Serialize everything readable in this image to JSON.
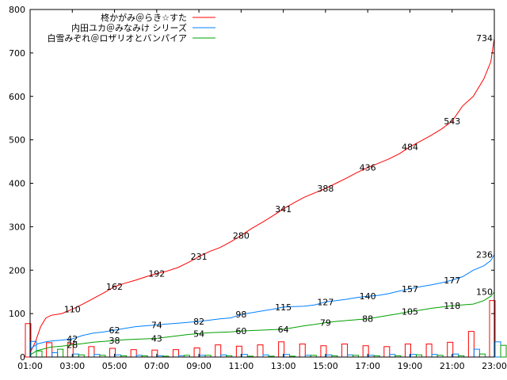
{
  "chart_data": {
    "type": "line",
    "x_start": "01:00",
    "x_end": "23:00",
    "x_ticks": [
      "01:00",
      "03:00",
      "05:00",
      "07:00",
      "09:00",
      "11:00",
      "13:00",
      "15:00",
      "17:00",
      "19:00",
      "21:00",
      "23:00"
    ],
    "ylim": [
      0,
      800
    ],
    "y_ticks": [
      "0",
      "100",
      "200",
      "300",
      "400",
      "500",
      "600",
      "700",
      "800"
    ],
    "grid": false,
    "legend_position": "top-left",
    "series": [
      {
        "name": "柊かがみ＠らき☆すた",
        "color": "#ff0000",
        "cumulative": [
          [
            "01:00",
            10
          ],
          [
            "01:15",
            35
          ],
          [
            "01:30",
            70
          ],
          [
            "01:45",
            90
          ],
          [
            "02:00",
            96
          ],
          [
            "02:30",
            100
          ],
          [
            "03:00",
            110
          ],
          [
            "03:30",
            122
          ],
          [
            "04:00",
            135
          ],
          [
            "04:30",
            148
          ],
          [
            "05:00",
            162
          ],
          [
            "05:30",
            170
          ],
          [
            "06:00",
            177
          ],
          [
            "06:30",
            185
          ],
          [
            "07:00",
            192
          ],
          [
            "07:30",
            198
          ],
          [
            "08:00",
            206
          ],
          [
            "08:30",
            218
          ],
          [
            "09:00",
            231
          ],
          [
            "09:30",
            243
          ],
          [
            "10:00",
            252
          ],
          [
            "10:30",
            265
          ],
          [
            "11:00",
            280
          ],
          [
            "11:30",
            296
          ],
          [
            "12:00",
            310
          ],
          [
            "12:30",
            325
          ],
          [
            "13:00",
            341
          ],
          [
            "13:30",
            355
          ],
          [
            "14:00",
            368
          ],
          [
            "14:30",
            378
          ],
          [
            "15:00",
            388
          ],
          [
            "15:30",
            400
          ],
          [
            "16:00",
            412
          ],
          [
            "16:30",
            425
          ],
          [
            "17:00",
            436
          ],
          [
            "17:30",
            446
          ],
          [
            "18:00",
            456
          ],
          [
            "18:30",
            468
          ],
          [
            "19:00",
            484
          ],
          [
            "19:30",
            497
          ],
          [
            "20:00",
            510
          ],
          [
            "20:30",
            525
          ],
          [
            "21:00",
            543
          ],
          [
            "21:30",
            578
          ],
          [
            "22:00",
            600
          ],
          [
            "22:30",
            640
          ],
          [
            "22:50",
            680
          ],
          [
            "23:00",
            734
          ]
        ],
        "point_labels": [
          [
            "03:00",
            110
          ],
          [
            "05:00",
            162
          ],
          [
            "07:00",
            192
          ],
          [
            "09:00",
            231
          ],
          [
            "11:00",
            280
          ],
          [
            "13:00",
            341
          ],
          [
            "15:00",
            388
          ],
          [
            "17:00",
            436
          ],
          [
            "19:00",
            484
          ],
          [
            "21:00",
            543
          ],
          [
            "23:00",
            734
          ]
        ],
        "hourly": [
          [
            "01:00",
            77
          ],
          [
            "02:00",
            33
          ],
          [
            "03:00",
            31
          ],
          [
            "04:00",
            24
          ],
          [
            "05:00",
            20
          ],
          [
            "06:00",
            17
          ],
          [
            "07:00",
            16
          ],
          [
            "08:00",
            17
          ],
          [
            "09:00",
            21
          ],
          [
            "10:00",
            28
          ],
          [
            "11:00",
            25
          ],
          [
            "12:00",
            28
          ],
          [
            "13:00",
            35
          ],
          [
            "14:00",
            30
          ],
          [
            "15:00",
            26
          ],
          [
            "16:00",
            30
          ],
          [
            "17:00",
            26
          ],
          [
            "18:00",
            24
          ],
          [
            "19:00",
            30
          ],
          [
            "20:00",
            30
          ],
          [
            "21:00",
            34
          ],
          [
            "22:00",
            59
          ],
          [
            "23:00",
            130
          ]
        ]
      },
      {
        "name": "内田ユカ＠みなみけ シリーズ",
        "color": "#0080ff",
        "cumulative": [
          [
            "01:00",
            18
          ],
          [
            "01:20",
            30
          ],
          [
            "01:45",
            35
          ],
          [
            "02:00",
            37
          ],
          [
            "02:30",
            39
          ],
          [
            "03:00",
            42
          ],
          [
            "03:30",
            50
          ],
          [
            "04:00",
            55
          ],
          [
            "04:30",
            58
          ],
          [
            "05:00",
            62
          ],
          [
            "05:30",
            66
          ],
          [
            "06:00",
            70
          ],
          [
            "06:30",
            72
          ],
          [
            "07:00",
            74
          ],
          [
            "07:30",
            76
          ],
          [
            "08:00",
            78
          ],
          [
            "08:30",
            80
          ],
          [
            "09:00",
            82
          ],
          [
            "09:30",
            85
          ],
          [
            "10:00",
            88
          ],
          [
            "10:30",
            90
          ],
          [
            "11:00",
            98
          ],
          [
            "11:30",
            102
          ],
          [
            "12:00",
            106
          ],
          [
            "12:30",
            110
          ],
          [
            "13:00",
            115
          ],
          [
            "13:30",
            116
          ],
          [
            "14:00",
            117
          ],
          [
            "14:30",
            120
          ],
          [
            "15:00",
            127
          ],
          [
            "15:30",
            130
          ],
          [
            "16:00",
            133
          ],
          [
            "16:30",
            137
          ],
          [
            "17:00",
            140
          ],
          [
            "17:30",
            142
          ],
          [
            "18:00",
            146
          ],
          [
            "18:30",
            152
          ],
          [
            "19:00",
            157
          ],
          [
            "19:30",
            162
          ],
          [
            "20:00",
            166
          ],
          [
            "20:30",
            171
          ],
          [
            "21:00",
            177
          ],
          [
            "21:30",
            185
          ],
          [
            "22:00",
            200
          ],
          [
            "22:30",
            210
          ],
          [
            "22:50",
            222
          ],
          [
            "23:00",
            236
          ]
        ],
        "point_labels": [
          [
            "03:00",
            42
          ],
          [
            "05:00",
            62
          ],
          [
            "07:00",
            74
          ],
          [
            "09:00",
            82
          ],
          [
            "11:00",
            98
          ],
          [
            "13:00",
            115
          ],
          [
            "15:00",
            127
          ],
          [
            "17:00",
            140
          ],
          [
            "19:00",
            157
          ],
          [
            "21:00",
            177
          ],
          [
            "23:00",
            236
          ]
        ],
        "hourly": [
          [
            "01:00",
            36
          ],
          [
            "02:00",
            10
          ],
          [
            "03:00",
            7
          ],
          [
            "04:00",
            6
          ],
          [
            "05:00",
            5
          ],
          [
            "06:00",
            4
          ],
          [
            "07:00",
            3
          ],
          [
            "08:00",
            3
          ],
          [
            "09:00",
            4
          ],
          [
            "10:00",
            5
          ],
          [
            "11:00",
            6
          ],
          [
            "12:00",
            5
          ],
          [
            "13:00",
            6
          ],
          [
            "14:00",
            4
          ],
          [
            "15:00",
            5
          ],
          [
            "16:00",
            5
          ],
          [
            "17:00",
            4
          ],
          [
            "18:00",
            6
          ],
          [
            "19:00",
            6
          ],
          [
            "20:00",
            6
          ],
          [
            "21:00",
            7
          ],
          [
            "22:00",
            18
          ],
          [
            "23:00",
            35
          ]
        ]
      },
      {
        "name": "白雪みぞれ＠ロザリオとバンパイア",
        "color": "#00a000",
        "cumulative": [
          [
            "01:00",
            5
          ],
          [
            "01:20",
            15
          ],
          [
            "01:45",
            20
          ],
          [
            "02:00",
            23
          ],
          [
            "02:30",
            25
          ],
          [
            "03:00",
            28
          ],
          [
            "03:30",
            31
          ],
          [
            "04:00",
            34
          ],
          [
            "04:30",
            36
          ],
          [
            "05:00",
            38
          ],
          [
            "05:30",
            40
          ],
          [
            "06:00",
            41
          ],
          [
            "06:30",
            42
          ],
          [
            "07:00",
            43
          ],
          [
            "07:30",
            46
          ],
          [
            "08:00",
            49
          ],
          [
            "08:30",
            52
          ],
          [
            "09:00",
            54
          ],
          [
            "09:30",
            56
          ],
          [
            "10:00",
            57
          ],
          [
            "10:30",
            58
          ],
          [
            "11:00",
            60
          ],
          [
            "11:30",
            61
          ],
          [
            "12:00",
            62
          ],
          [
            "12:30",
            63
          ],
          [
            "13:00",
            64
          ],
          [
            "13:30",
            68
          ],
          [
            "14:00",
            72
          ],
          [
            "14:30",
            75
          ],
          [
            "15:00",
            79
          ],
          [
            "15:30",
            82
          ],
          [
            "16:00",
            84
          ],
          [
            "16:30",
            86
          ],
          [
            "17:00",
            88
          ],
          [
            "17:30",
            92
          ],
          [
            "18:00",
            96
          ],
          [
            "18:30",
            100
          ],
          [
            "19:00",
            105
          ],
          [
            "19:30",
            108
          ],
          [
            "20:00",
            112
          ],
          [
            "20:30",
            115
          ],
          [
            "21:00",
            118
          ],
          [
            "21:30",
            120
          ],
          [
            "22:00",
            122
          ],
          [
            "22:30",
            130
          ],
          [
            "22:50",
            140
          ],
          [
            "23:00",
            150
          ]
        ],
        "point_labels": [
          [
            "03:00",
            28
          ],
          [
            "05:00",
            38
          ],
          [
            "07:00",
            43
          ],
          [
            "09:00",
            54
          ],
          [
            "11:00",
            60
          ],
          [
            "13:00",
            64
          ],
          [
            "15:00",
            79
          ],
          [
            "17:00",
            88
          ],
          [
            "19:00",
            105
          ],
          [
            "21:00",
            118
          ],
          [
            "23:00",
            150
          ]
        ],
        "hourly": [
          [
            "01:00",
            14
          ],
          [
            "02:00",
            18
          ],
          [
            "03:00",
            5
          ],
          [
            "04:00",
            4
          ],
          [
            "05:00",
            3
          ],
          [
            "06:00",
            3
          ],
          [
            "07:00",
            2
          ],
          [
            "08:00",
            4
          ],
          [
            "09:00",
            4
          ],
          [
            "10:00",
            3
          ],
          [
            "11:00",
            2
          ],
          [
            "12:00",
            2
          ],
          [
            "13:00",
            2
          ],
          [
            "14:00",
            4
          ],
          [
            "15:00",
            3
          ],
          [
            "16:00",
            4
          ],
          [
            "17:00",
            3
          ],
          [
            "18:00",
            3
          ],
          [
            "19:00",
            5
          ],
          [
            "20:00",
            4
          ],
          [
            "21:00",
            3
          ],
          [
            "22:00",
            7
          ],
          [
            "23:00",
            27
          ]
        ]
      }
    ]
  }
}
